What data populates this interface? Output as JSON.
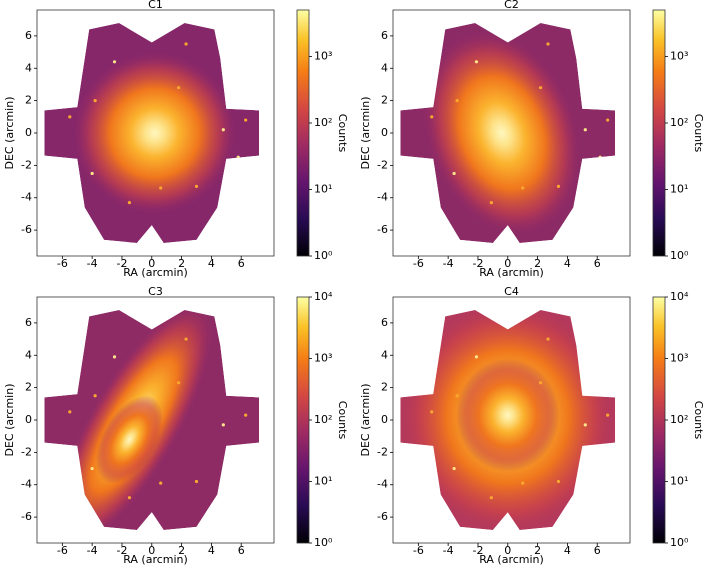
{
  "chart_data": [
    {
      "type": "image",
      "title": "C1",
      "xlabel": "RA (arcmin)",
      "ylabel": "DEC (arcmin)",
      "xlim": [
        -7.7,
        8.2
      ],
      "ylim": [
        -7.6,
        7.6
      ],
      "xticks": [
        -6,
        -4,
        -2,
        0,
        2,
        4,
        6
      ],
      "yticks": [
        -6,
        -4,
        -2,
        0,
        2,
        4,
        6
      ],
      "colorbar": {
        "label": "Counts",
        "log_scale": true,
        "lim": [
          1,
          5000
        ],
        "ticks": [
          {
            "value": 1,
            "label": "10⁰"
          },
          {
            "value": 10,
            "label": "10¹"
          },
          {
            "value": 100,
            "label": "10²"
          },
          {
            "value": 1000,
            "label": "10³"
          }
        ]
      }
    },
    {
      "type": "image",
      "title": "C2",
      "xlabel": "RA (arcmin)",
      "ylabel": "DEC (arcmin)",
      "xlim": [
        -7.7,
        8.2
      ],
      "ylim": [
        -7.6,
        7.6
      ],
      "xticks": [
        -6,
        -4,
        -2,
        0,
        2,
        4,
        6
      ],
      "yticks": [
        -6,
        -4,
        -2,
        0,
        2,
        4,
        6
      ],
      "colorbar": {
        "label": "Counts",
        "log_scale": true,
        "lim": [
          1,
          5000
        ],
        "ticks": [
          {
            "value": 1,
            "label": "10⁰"
          },
          {
            "value": 10,
            "label": "10¹"
          },
          {
            "value": 100,
            "label": "10²"
          },
          {
            "value": 1000,
            "label": "10³"
          }
        ]
      }
    },
    {
      "type": "image",
      "title": "C3",
      "xlabel": "RA (arcmin)",
      "ylabel": "DEC (arcmin)",
      "xlim": [
        -7.7,
        8.2
      ],
      "ylim": [
        -7.6,
        7.6
      ],
      "xticks": [
        -6,
        -4,
        -2,
        0,
        2,
        4,
        6
      ],
      "yticks": [
        -6,
        -4,
        -2,
        0,
        2,
        4,
        6
      ],
      "colorbar": {
        "label": "Counts",
        "log_scale": true,
        "lim": [
          1,
          10000
        ],
        "ticks": [
          {
            "value": 1,
            "label": "10⁰"
          },
          {
            "value": 10,
            "label": "10¹"
          },
          {
            "value": 100,
            "label": "10²"
          },
          {
            "value": 1000,
            "label": "10³"
          },
          {
            "value": 10000,
            "label": "10⁴"
          }
        ]
      }
    },
    {
      "type": "image",
      "title": "C4",
      "xlabel": "RA (arcmin)",
      "ylabel": "DEC (arcmin)",
      "xlim": [
        -7.7,
        8.2
      ],
      "ylim": [
        -7.6,
        7.6
      ],
      "xticks": [
        -6,
        -4,
        -2,
        0,
        2,
        4,
        6
      ],
      "yticks": [
        -6,
        -4,
        -2,
        0,
        2,
        4,
        6
      ],
      "colorbar": {
        "label": "Counts",
        "log_scale": true,
        "lim": [
          1,
          10000
        ],
        "ticks": [
          {
            "value": 1,
            "label": "10⁰"
          },
          {
            "value": 10,
            "label": "10¹"
          },
          {
            "value": 100,
            "label": "10²"
          },
          {
            "value": 1000,
            "label": "10³"
          },
          {
            "value": 10000,
            "label": "10⁴"
          }
        ]
      }
    }
  ]
}
